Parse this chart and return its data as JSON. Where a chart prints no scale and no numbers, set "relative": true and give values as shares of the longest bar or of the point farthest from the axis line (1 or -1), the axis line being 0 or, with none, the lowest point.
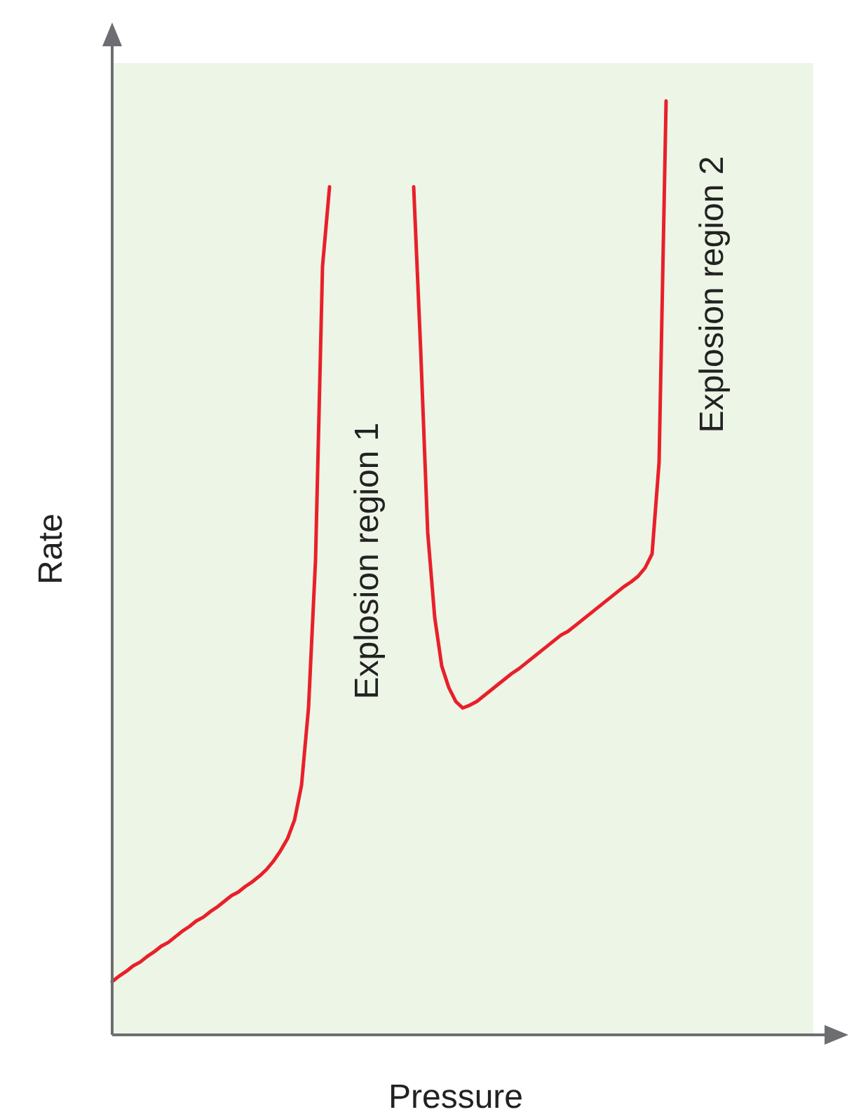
{
  "chart_data": {
    "type": "line",
    "relative": true,
    "xlabel": "Pressure",
    "ylabel": "Rate",
    "grid": false,
    "marker": "none",
    "line_style": "solid",
    "categories": [
      null,
      null,
      null,
      null,
      null,
      null,
      null,
      null,
      null,
      null,
      null,
      null,
      null,
      null,
      null,
      null,
      null,
      null,
      null,
      null,
      null,
      null,
      null,
      null,
      null,
      null,
      null,
      null,
      null,
      null,
      null,
      null,
      null,
      null,
      null,
      null,
      null,
      null,
      null,
      null,
      null,
      null,
      null,
      null,
      null,
      null,
      null,
      null,
      null,
      null,
      null,
      null,
      null,
      null,
      null,
      null,
      null,
      null,
      null,
      null,
      null,
      null,
      null,
      null,
      null,
      null,
      null,
      null,
      null,
      null,
      null,
      null,
      null,
      null,
      null,
      null,
      null,
      null,
      null,
      null,
      null,
      null,
      null,
      null,
      null,
      null,
      null,
      null,
      null,
      null,
      null,
      null,
      null,
      null,
      null,
      null,
      null,
      null,
      null,
      null,
      null
    ],
    "series": [
      {
        "color": "#e8202a",
        "values": [
          0.057,
          0.063,
          0.068,
          0.074,
          0.078,
          0.084,
          0.089,
          0.095,
          0.099,
          0.105,
          0.111,
          0.116,
          0.122,
          0.126,
          0.132,
          0.137,
          0.143,
          0.149,
          0.153,
          0.159,
          0.164,
          0.17,
          0.177,
          0.186,
          0.197,
          0.21,
          0.23,
          0.267,
          0.35,
          0.508,
          0.823,
          0.908,
          null,
          null,
          null,
          null,
          null,
          null,
          null,
          null,
          null,
          null,
          null,
          null,
          null,
          null,
          null,
          null,
          null,
          null,
          null,
          null,
          null,
          null,
          null,
          null,
          null,
          null,
          null,
          null,
          null,
          null,
          null,
          null,
          null,
          null,
          null,
          null,
          null,
          null,
          null,
          null,
          null,
          null,
          null,
          null,
          null,
          null,
          null,
          null,
          null,
          null,
          null,
          null,
          null,
          null,
          null,
          null,
          null,
          null,
          null,
          null,
          null,
          null,
          null,
          null,
          null,
          null,
          null,
          null,
          null
        ]
      },
      {
        "color": "#e8202a",
        "values": [
          null,
          null,
          null,
          null,
          null,
          null,
          null,
          null,
          null,
          null,
          null,
          null,
          null,
          null,
          null,
          null,
          null,
          null,
          null,
          null,
          null,
          null,
          null,
          null,
          null,
          null,
          null,
          null,
          null,
          null,
          null,
          null,
          null,
          null,
          null,
          null,
          null,
          null,
          null,
          null,
          null,
          null,
          null,
          0.908,
          0.733,
          0.538,
          0.447,
          0.395,
          0.372,
          0.357,
          0.35,
          0.353,
          0.357,
          0.363,
          0.369,
          0.375,
          0.381,
          0.387,
          0.392,
          0.398,
          0.404,
          0.41,
          0.416,
          0.422,
          0.428,
          0.432,
          0.438,
          0.444,
          0.45,
          0.456,
          0.462,
          0.468,
          0.474,
          0.48,
          0.485,
          0.491,
          0.5,
          0.515,
          0.613,
          1.0,
          null,
          null,
          null,
          null,
          null,
          null,
          null,
          null,
          null,
          null,
          null,
          null,
          null,
          null,
          null,
          null,
          null,
          null,
          null,
          null,
          null
        ]
      }
    ],
    "annotations": [
      "Explosion region 1",
      "Explosion region 2"
    ]
  }
}
